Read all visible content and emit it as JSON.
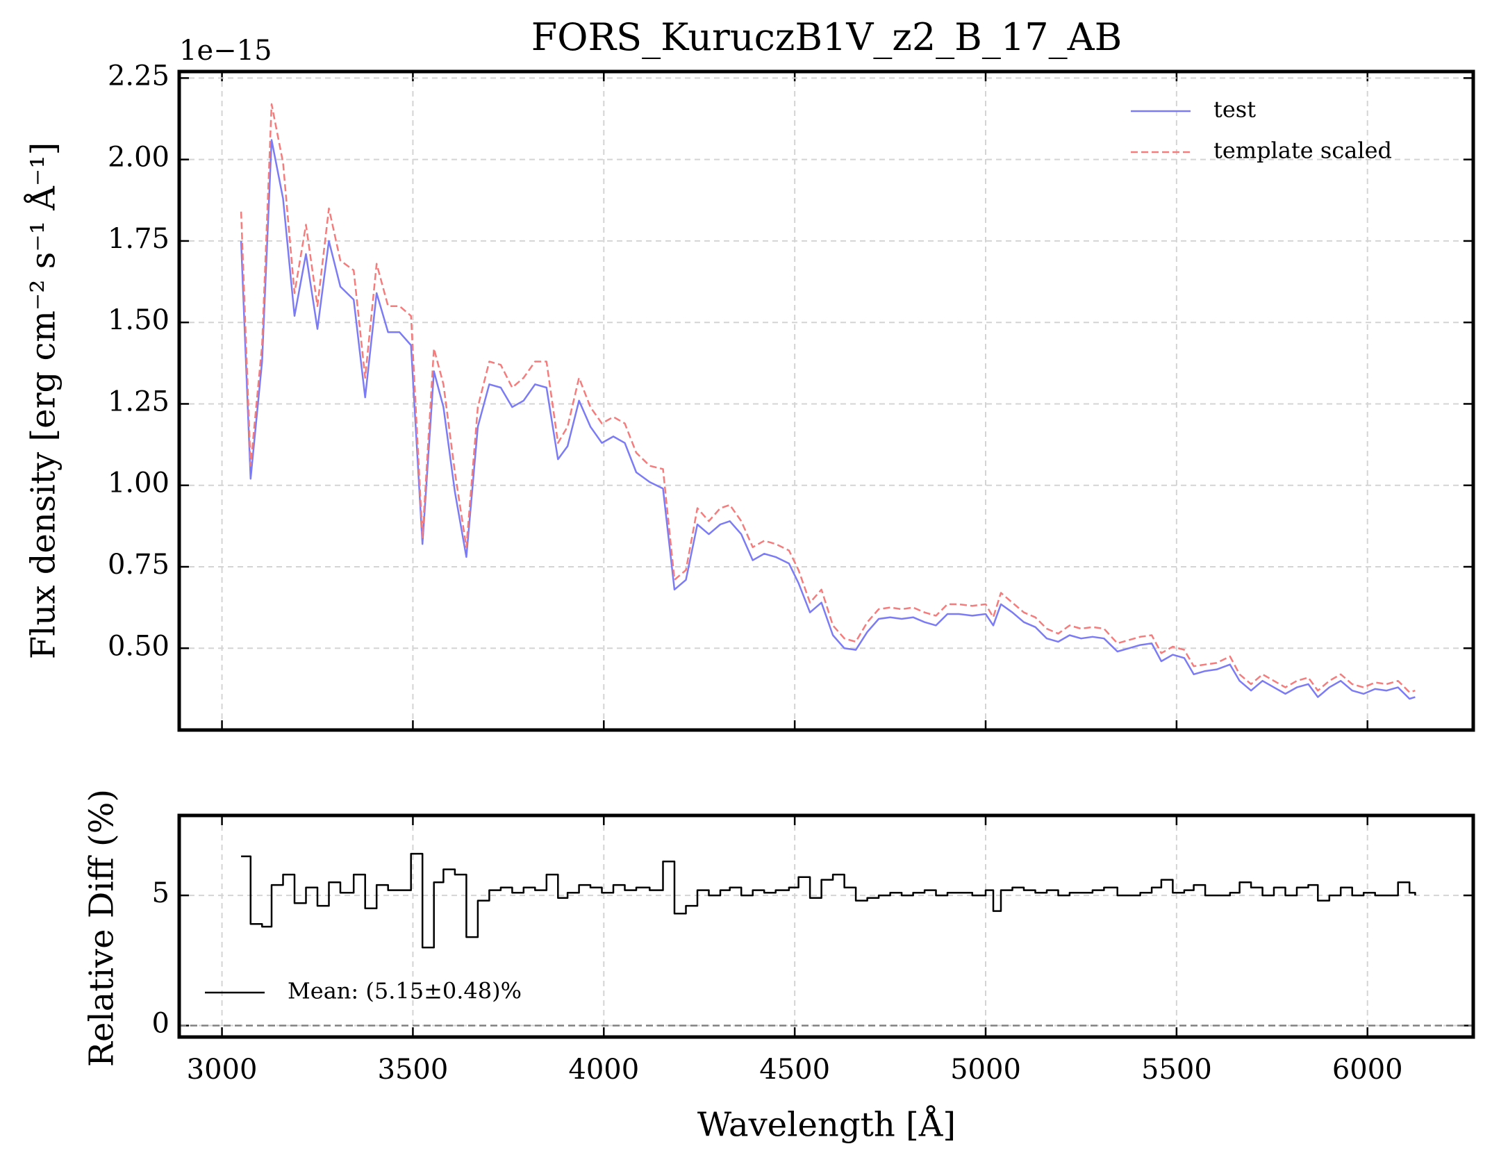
{
  "chart_data": [
    {
      "type": "line",
      "title": "FORS_KuruczB1V_z2_B_17_AB",
      "offset_text": "1e−15",
      "y_label": "Flux density [erg cm⁻² s⁻¹ Å⁻¹]",
      "x": [
        3050,
        3075,
        3105,
        3130,
        3160,
        3190,
        3220,
        3250,
        3280,
        3310,
        3345,
        3375,
        3405,
        3435,
        3465,
        3495,
        3525,
        3555,
        3580,
        3610,
        3640,
        3670,
        3700,
        3730,
        3760,
        3790,
        3820,
        3850,
        3880,
        3905,
        3935,
        3965,
        3995,
        4025,
        4055,
        4085,
        4120,
        4155,
        4185,
        4215,
        4245,
        4275,
        4305,
        4330,
        4360,
        4390,
        4420,
        4450,
        4485,
        4510,
        4540,
        4570,
        4600,
        4630,
        4660,
        4690,
        4720,
        4750,
        4780,
        4810,
        4840,
        4870,
        4900,
        4930,
        4965,
        5000,
        5020,
        5040,
        5070,
        5100,
        5130,
        5160,
        5190,
        5220,
        5250,
        5280,
        5310,
        5345,
        5375,
        5405,
        5435,
        5460,
        5490,
        5520,
        5545,
        5575,
        5605,
        5640,
        5665,
        5695,
        5725,
        5755,
        5785,
        5815,
        5845,
        5870,
        5900,
        5930,
        5960,
        5990,
        6020,
        6050,
        6080,
        6110,
        6125
      ],
      "series": [
        {
          "name": "test",
          "color": "#7b7bf5",
          "linestyle": "solid",
          "values": [
            1.75,
            1.02,
            1.38,
            2.06,
            1.88,
            1.52,
            1.71,
            1.48,
            1.75,
            1.61,
            1.57,
            1.27,
            1.59,
            1.47,
            1.47,
            1.43,
            0.82,
            1.35,
            1.24,
            0.98,
            0.78,
            1.18,
            1.31,
            1.3,
            1.24,
            1.26,
            1.31,
            1.3,
            1.08,
            1.12,
            1.26,
            1.18,
            1.13,
            1.15,
            1.13,
            1.04,
            1.01,
            0.99,
            0.68,
            0.71,
            0.88,
            0.85,
            0.88,
            0.89,
            0.85,
            0.77,
            0.79,
            0.78,
            0.76,
            0.7,
            0.61,
            0.64,
            0.54,
            0.5,
            0.495,
            0.55,
            0.59,
            0.595,
            0.59,
            0.595,
            0.58,
            0.57,
            0.605,
            0.605,
            0.6,
            0.605,
            0.57,
            0.635,
            0.61,
            0.58,
            0.565,
            0.53,
            0.52,
            0.54,
            0.53,
            0.535,
            0.53,
            0.49,
            0.5,
            0.51,
            0.515,
            0.46,
            0.48,
            0.47,
            0.42,
            0.43,
            0.435,
            0.45,
            0.4,
            0.37,
            0.4,
            0.38,
            0.36,
            0.38,
            0.39,
            0.35,
            0.38,
            0.4,
            0.37,
            0.36,
            0.375,
            0.37,
            0.38,
            0.345,
            0.35
          ]
        },
        {
          "name": "template scaled",
          "color": "#f47c7c",
          "linestyle": "dashed",
          "values": [
            1.84,
            1.06,
            1.43,
            2.17,
            1.99,
            1.59,
            1.8,
            1.55,
            1.85,
            1.69,
            1.66,
            1.33,
            1.68,
            1.55,
            1.55,
            1.52,
            0.84,
            1.42,
            1.31,
            1.04,
            0.81,
            1.24,
            1.38,
            1.37,
            1.3,
            1.33,
            1.38,
            1.38,
            1.13,
            1.18,
            1.33,
            1.24,
            1.19,
            1.21,
            1.19,
            1.1,
            1.06,
            1.05,
            0.71,
            0.74,
            0.93,
            0.89,
            0.93,
            0.94,
            0.89,
            0.81,
            0.83,
            0.82,
            0.8,
            0.74,
            0.64,
            0.68,
            0.57,
            0.53,
            0.52,
            0.58,
            0.62,
            0.625,
            0.62,
            0.625,
            0.61,
            0.6,
            0.635,
            0.635,
            0.63,
            0.635,
            0.595,
            0.67,
            0.64,
            0.61,
            0.595,
            0.56,
            0.545,
            0.57,
            0.56,
            0.565,
            0.56,
            0.515,
            0.525,
            0.535,
            0.54,
            0.485,
            0.505,
            0.495,
            0.445,
            0.45,
            0.455,
            0.475,
            0.42,
            0.39,
            0.42,
            0.4,
            0.38,
            0.4,
            0.41,
            0.37,
            0.4,
            0.42,
            0.39,
            0.38,
            0.395,
            0.39,
            0.4,
            0.365,
            0.37
          ]
        }
      ],
      "xlim": [
        2888,
        6277
      ],
      "xticks": [
        3000,
        3500,
        4000,
        4500,
        5000,
        5500,
        6000
      ],
      "show_xticklabels": false,
      "ylim": [
        0.249,
        2.27
      ],
      "yticks": [
        {
          "value": 0.5,
          "label": "0.50"
        },
        0.75,
        {
          "value": 1,
          "label": "1.00"
        },
        1.25,
        {
          "value": 1.5,
          "label": "1.50"
        },
        1.75,
        {
          "value": 2,
          "label": "2.00"
        },
        2.25
      ],
      "grid": true,
      "legend": "upper right"
    },
    {
      "type": "step",
      "x_label": "Wavelength [Å]",
      "y_label": "Relative Diff (%)",
      "x": [
        3050,
        3075,
        3105,
        3130,
        3160,
        3190,
        3220,
        3250,
        3280,
        3310,
        3345,
        3375,
        3405,
        3435,
        3465,
        3495,
        3525,
        3555,
        3580,
        3610,
        3640,
        3670,
        3700,
        3730,
        3760,
        3790,
        3820,
        3850,
        3880,
        3905,
        3935,
        3965,
        3995,
        4025,
        4055,
        4085,
        4120,
        4155,
        4185,
        4215,
        4245,
        4275,
        4305,
        4330,
        4360,
        4390,
        4420,
        4450,
        4485,
        4510,
        4540,
        4570,
        4600,
        4630,
        4660,
        4690,
        4720,
        4750,
        4780,
        4810,
        4840,
        4870,
        4900,
        4930,
        4965,
        5000,
        5020,
        5040,
        5070,
        5100,
        5130,
        5160,
        5190,
        5220,
        5250,
        5280,
        5310,
        5345,
        5375,
        5405,
        5435,
        5460,
        5490,
        5520,
        5545,
        5575,
        5605,
        5640,
        5665,
        5695,
        5725,
        5755,
        5785,
        5815,
        5845,
        5870,
        5900,
        5930,
        5960,
        5990,
        6020,
        6050,
        6080,
        6110,
        6125
      ],
      "series": [
        {
          "name": "Mean: (5.15±0.48)%",
          "color": "#000000",
          "values": [
            6.5,
            3.9,
            3.8,
            5.4,
            5.8,
            4.7,
            5.3,
            4.6,
            5.5,
            5.1,
            5.8,
            4.5,
            5.4,
            5.2,
            5.2,
            6.6,
            3.0,
            5.5,
            6.0,
            5.8,
            3.4,
            4.8,
            5.2,
            5.3,
            5.1,
            5.3,
            5.2,
            5.8,
            4.9,
            5.1,
            5.4,
            5.3,
            5.1,
            5.4,
            5.2,
            5.3,
            5.2,
            6.3,
            4.3,
            4.6,
            5.2,
            5.0,
            5.2,
            5.3,
            5.0,
            5.2,
            5.1,
            5.2,
            5.3,
            5.7,
            4.9,
            5.6,
            5.8,
            5.3,
            4.8,
            4.9,
            5.0,
            5.1,
            5.0,
            5.1,
            5.2,
            5.0,
            5.1,
            5.1,
            5.0,
            5.2,
            4.4,
            5.2,
            5.3,
            5.2,
            5.1,
            5.2,
            5.0,
            5.1,
            5.1,
            5.2,
            5.3,
            5.0,
            5.0,
            5.1,
            5.3,
            5.6,
            5.1,
            5.2,
            5.4,
            5.0,
            5.0,
            5.1,
            5.5,
            5.3,
            5.0,
            5.3,
            5.0,
            5.3,
            5.4,
            4.8,
            5.0,
            5.3,
            5.0,
            5.1,
            5.0,
            5.0,
            5.5,
            5.1,
            5.0
          ]
        }
      ],
      "hline": {
        "value": 0,
        "color": "#808080"
      },
      "xlim": [
        2888,
        6277
      ],
      "xticks": [
        3000,
        3500,
        4000,
        4500,
        5000,
        5500,
        6000
      ],
      "show_xticklabels": true,
      "ylim": [
        -0.44,
        8.07
      ],
      "yticks": [
        0,
        5
      ],
      "grid": true,
      "legend": "lower left"
    }
  ]
}
